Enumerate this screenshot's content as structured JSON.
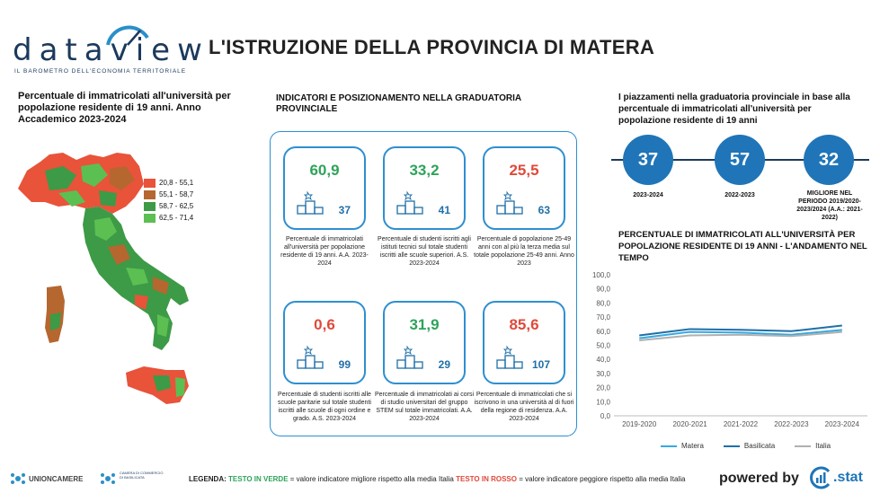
{
  "header": {
    "logo": "dataview",
    "logo_tagline": "IL BAROMETRO DELL'ECONOMIA TERRITORIALE",
    "title": "L'ISTRUZIONE DELLA PROVINCIA DI MATERA"
  },
  "map": {
    "title": "Percentuale di immatricolati all'università per popolazione residente di 19 anni. Anno Accademico 2023-2024",
    "legend": [
      {
        "label": "20,8 - 55,1",
        "color": "#e8533a"
      },
      {
        "label": "55,1 - 58,7",
        "color": "#b5672f"
      },
      {
        "label": "58,7 - 62,5",
        "color": "#3d9a46"
      },
      {
        "label": "62,5 - 71,4",
        "color": "#5cbf52"
      }
    ]
  },
  "indicators": {
    "title": "INDICATORI E POSIZIONAMENTO NELLA GRADUATORIA PROVINCIALE",
    "cards": [
      {
        "value": "60,9",
        "rank": "37",
        "status": "green",
        "desc": "Percentuale di immatricolati all'università per popolazione residente di 19 anni. A.A. 2023-2024"
      },
      {
        "value": "33,2",
        "rank": "41",
        "status": "green",
        "desc": "Percentuale di studenti iscritti agli istituti tecnici sul totale studenti iscritti alle scuole superiori. A.S. 2023-2024"
      },
      {
        "value": "25,5",
        "rank": "63",
        "status": "red",
        "desc": "Percentuale di popolazione 25-49 anni con al più la terza media sul totale popolazione 25-49 anni. Anno 2023"
      },
      {
        "value": "0,6",
        "rank": "99",
        "status": "red",
        "desc": "Percentuale di studenti iscritti alle scuole paritarie sul totale studenti iscritti alle scuole di ogni ordine e grado. A.S. 2023-2024"
      },
      {
        "value": "31,9",
        "rank": "29",
        "status": "green",
        "desc": "Percentuale di immatricolati ai corsi di studio universitari del gruppo STEM sul totale immatricolati. A.A. 2023-2024"
      },
      {
        "value": "85,6",
        "rank": "107",
        "status": "red",
        "desc": "Percentuale di immatricolati che si iscrivono in una università al di fuori della regione di residenza. A.A. 2023-2024"
      }
    ]
  },
  "ranking": {
    "title": "I piazzamenti nella graduatoria provinciale in base alla percentuale di immatricolati all'università per popolazione residente di 19 anni",
    "items": [
      {
        "value": "37",
        "label": "2023-2024"
      },
      {
        "value": "57",
        "label": "2022-2023"
      },
      {
        "value": "32",
        "label": "MIGLIORE NEL PERIODO 2019/2020-2023/2024 (A.A.: 2021-2022)"
      }
    ]
  },
  "chart_data": {
    "type": "line",
    "title": "PERCENTUALE DI IMMATRICOLATI ALL'UNIVERSITÀ PER POPOLAZIONE RESIDENTE DI 19 ANNI - L'ANDAMENTO NEL TEMPO",
    "categories": [
      "2019-2020",
      "2020-2021",
      "2021-2022",
      "2022-2023",
      "2023-2024"
    ],
    "y_ticks": [
      "100,0",
      "90,0",
      "80,0",
      "70,0",
      "60,0",
      "50,0",
      "40,0",
      "30,0",
      "20,0",
      "10,0",
      "0,0"
    ],
    "ylim": [
      0,
      100
    ],
    "series": [
      {
        "name": "Matera",
        "color": "#36a9e1",
        "values": [
          55.0,
          59.5,
          59.0,
          57.5,
          60.9
        ]
      },
      {
        "name": "Basilicata",
        "color": "#1f6fa8",
        "values": [
          57.0,
          61.5,
          61.0,
          60.0,
          64.0
        ]
      },
      {
        "name": "Italia",
        "color": "#b0b0b0",
        "values": [
          53.5,
          57.0,
          57.5,
          56.5,
          59.5
        ]
      }
    ]
  },
  "footer": {
    "unioncamere": "UNIONCAMERE",
    "camera": "CAMERA DI COMMERCIO DI BASILICATA",
    "legend_prefix": "LEGENDA:",
    "legend_green": "TESTO IN VERDE",
    "legend_green_text": "= valore indicatore migliore rispetto alla media Italia",
    "legend_red": "TESTO IN ROSSO",
    "legend_red_text": "= valore indicatore peggiore rispetto alla media Italia",
    "powered": "powered by",
    "stat": ".stat"
  }
}
